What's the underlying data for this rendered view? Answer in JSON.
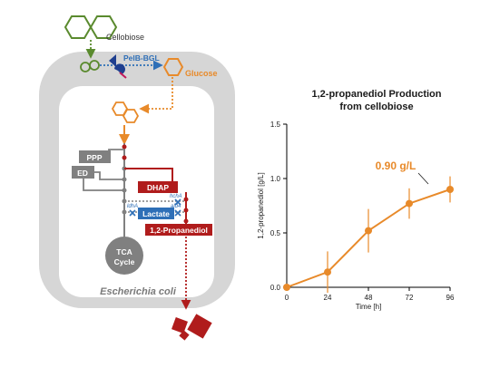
{
  "diagram": {
    "cellobiose": "Cellobiose",
    "enzyme": "PelB-BGL",
    "glucose": "Glucose",
    "ppp": "PPP",
    "ed": "ED",
    "dhap": "DHAP",
    "lactate": "Lactate",
    "ldha": "ldhA",
    "hcha": "hchA",
    "ald4": "ald4",
    "propanediol": "1,2-Propanediol",
    "tca_line1": "TCA",
    "tca_line2": "Cycle",
    "organism": "Escherichia coli",
    "colors": {
      "green": "#5a8a2e",
      "orange": "#e88a2a",
      "red": "#b01c1c",
      "gray": "#808080",
      "blue": "#2e6fb7",
      "cell": "#d6d6d6"
    }
  },
  "chart_data": {
    "type": "line",
    "title_line1": "1,2-propanediol Production",
    "title_line2": "from cellobiose",
    "xlabel": "Time [h]",
    "ylabel": "1,2-propanediol [g/L]",
    "xlim": [
      0,
      96
    ],
    "ylim": [
      0,
      1.5
    ],
    "x_ticks": [
      "0",
      "24",
      "48",
      "72",
      "96"
    ],
    "y_ticks": [
      "0.0",
      "0.5",
      "1.0",
      "1.5"
    ],
    "series": [
      {
        "x": [
          0,
          24,
          48,
          72,
          96
        ],
        "y": [
          0.0,
          0.14,
          0.52,
          0.77,
          0.9
        ],
        "err": [
          0.0,
          0.19,
          0.2,
          0.14,
          0.12
        ],
        "color": "#e88a2a"
      }
    ],
    "annotation": "0.90 g/L",
    "grid": false
  }
}
